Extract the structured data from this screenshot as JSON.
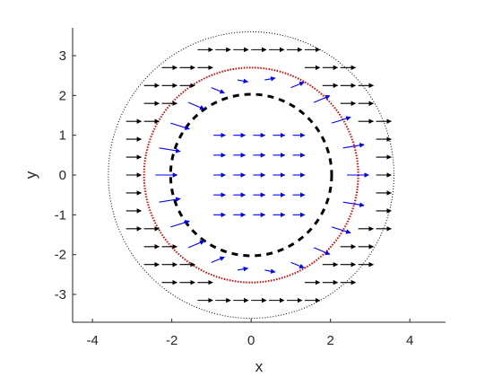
{
  "chart_data": {
    "type": "quiver",
    "xlabel": "x",
    "ylabel": "y",
    "xlim": [
      -4.5,
      4.9
    ],
    "ylim": [
      -3.7,
      3.7
    ],
    "xticks": [
      -4,
      -2,
      0,
      2,
      4
    ],
    "yticks": [
      -3,
      -2,
      -1,
      0,
      1,
      2,
      3
    ],
    "xtick_labels": [
      "-4",
      "-2",
      "0",
      "2",
      "4"
    ],
    "ytick_labels": [
      "-3",
      "-2",
      "-1",
      "0",
      "1",
      "2",
      "3"
    ],
    "boundaries": [
      {
        "name": "outer",
        "radius": 3.6,
        "color": "#000000",
        "style": "dotted"
      },
      {
        "name": "interface",
        "radius": 2.7,
        "color": "#e00000",
        "style": "dotted"
      },
      {
        "name": "inner",
        "radius": 2.03,
        "color": "#000000",
        "style": "dashed-thick"
      }
    ],
    "arrow_groups": [
      {
        "region": "outer-ring",
        "color": "#000000"
      },
      {
        "region": "between-circles",
        "color": "#0000ff"
      },
      {
        "region": "inside-inner",
        "color": "#0000ff"
      }
    ],
    "colors": {
      "axis": "#262626",
      "black_arrows": "#000000",
      "blue_arrows": "#0000ff",
      "red_circle": "#e00000"
    }
  }
}
